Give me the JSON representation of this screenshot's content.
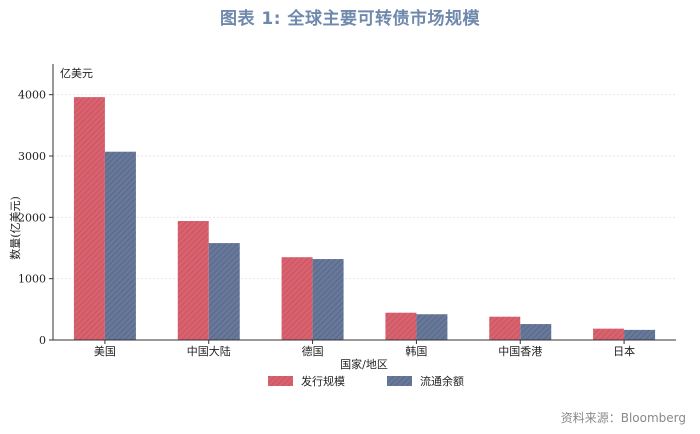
{
  "title": "图表 1:  全球主要可转债市场规模",
  "source": "资料来源：Bloomberg",
  "chart_data": {
    "type": "bar",
    "title": "图表 1:  全球主要可转债市场规模",
    "unit_label": "亿美元",
    "xlabel": "国家/地区",
    "ylabel": "数量(亿美元)",
    "categories": [
      "美国",
      "中国大陆",
      "德国",
      "韩国",
      "中国香港",
      "日本"
    ],
    "series": [
      {
        "name": "发行规模",
        "values": [
          3960,
          1940,
          1350,
          445,
          380,
          185
        ],
        "color": "#d9626f"
      },
      {
        "name": "流通余额",
        "values": [
          3070,
          1580,
          1320,
          420,
          260,
          165
        ],
        "color": "#67789a"
      }
    ],
    "ylim": [
      0,
      4500
    ],
    "yticks": [
      0,
      1000,
      2000,
      3000,
      4000
    ],
    "grid": true,
    "legend_position": "bottom-center"
  }
}
